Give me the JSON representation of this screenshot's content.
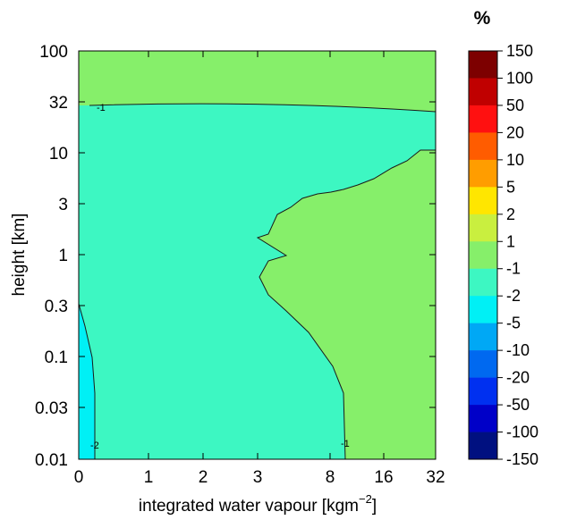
{
  "chart_data": {
    "type": "contour",
    "xlabel": "integrated water vapour [kgm",
    "xlabel_exponent": "−2",
    "xlabel_close": "]",
    "ylabel": "height [km]",
    "colorbar_title": "%",
    "x_ticks": [
      "0",
      "1",
      "2",
      "3",
      "8",
      "16",
      "32"
    ],
    "y_ticks": [
      "100",
      "32",
      "10",
      "3",
      "1",
      "0.3",
      "0.1",
      "0.03",
      "0.01"
    ],
    "y_scale": "log",
    "ylim": [
      0.01,
      100
    ],
    "xlim": [
      0,
      32
    ],
    "levels": [
      "150",
      "100",
      "50",
      "20",
      "10",
      "5",
      "2",
      "1",
      "-1",
      "-2",
      "-5",
      "-10",
      "-20",
      "-50",
      "-100",
      "-150"
    ],
    "colors": [
      "#7d0000",
      "#c00000",
      "#ff1010",
      "#ff5c00",
      "#ff9d00",
      "#ffe600",
      "#c9ef3f",
      "#86ef6a",
      "#3df7c2",
      "#00f0f5",
      "#00a8f5",
      "#0069f0",
      "#0030f0",
      "#0000c8",
      "#001080"
    ],
    "regions": [
      {
        "level": "-1 to 1",
        "color": "#86ef6a"
      },
      {
        "level": "-2 to -1",
        "color": "#3df7c2"
      },
      {
        "level": "-5 to -2",
        "color": "#00f0f5"
      }
    ],
    "contour_labels": [
      "-1",
      "-2",
      "-1"
    ]
  }
}
